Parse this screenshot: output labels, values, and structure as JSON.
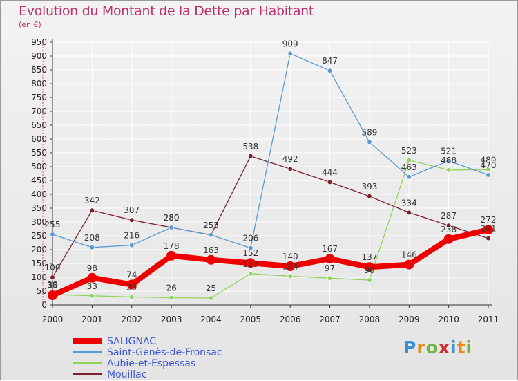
{
  "title": "Evolution du Montant de la Dette par Habitant",
  "subtitle": "(en €)",
  "logo_text": "Proxiti",
  "logo_colors": [
    "#3b8fd4",
    "#e88a1a",
    "#6cb33f",
    "#d62f2f",
    "#3b8fd4",
    "#e88a1a",
    "#6cb33f"
  ],
  "chart_data": {
    "type": "line",
    "x": [
      "2000",
      "2001",
      "2002",
      "2003",
      "2004",
      "2005",
      "2006",
      "2007",
      "2008",
      "2009",
      "2010",
      "2011"
    ],
    "ylim": [
      0,
      950
    ],
    "yticks": [
      0,
      50,
      100,
      150,
      200,
      250,
      300,
      350,
      400,
      450,
      500,
      550,
      600,
      650,
      700,
      750,
      800,
      850,
      900,
      950
    ],
    "grid": "horizontal",
    "legend_position": "bottom-left",
    "series": [
      {
        "name": "SALIGNAC",
        "color": "#ee0000",
        "values": [
          35,
          98,
          74,
          178,
          163,
          152,
          140,
          167,
          137,
          146,
          238,
          272
        ]
      },
      {
        "name": "Saint-Genès-de-Fronsac",
        "color": "#5b9bd5",
        "values": [
          255,
          208,
          216,
          280,
          253,
          206,
          909,
          847,
          589,
          463,
          521,
          470
        ]
      },
      {
        "name": "Aubie-et-Espessas",
        "color": "#8fd35a",
        "values": [
          38,
          33,
          29,
          26,
          25,
          113,
          104,
          97,
          90,
          523,
          488,
          489
        ]
      },
      {
        "name": "Mouillac",
        "color": "#7a1f2b",
        "values": [
          100,
          342,
          307,
          280,
          253,
          538,
          492,
          444,
          393,
          334,
          287,
          241
        ]
      }
    ]
  }
}
